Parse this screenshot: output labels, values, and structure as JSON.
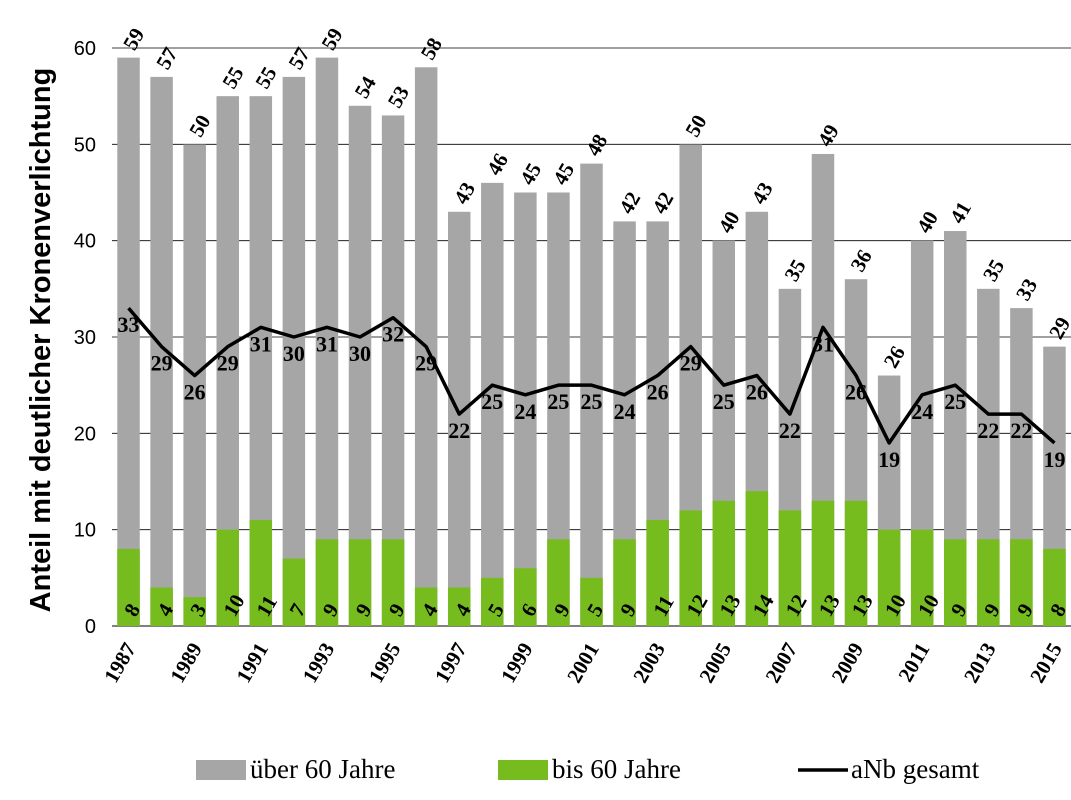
{
  "chart_data": {
    "type": "bar",
    "subtype": "grouped-overlap-bar-with-line",
    "title": "",
    "xlabel": "",
    "ylabel": "Anteil mit deutlicher Kronenverlichtung",
    "ylim": [
      0,
      60
    ],
    "yticks": [
      0,
      10,
      20,
      30,
      40,
      50,
      60
    ],
    "grid": true,
    "legend_position": "bottom",
    "categories": [
      "1987",
      "1988",
      "1989",
      "1990",
      "1991",
      "1992",
      "1993",
      "1994",
      "1995",
      "1996",
      "1997",
      "1998",
      "1999",
      "2000",
      "2001",
      "2002",
      "2003",
      "2004",
      "2005",
      "2006",
      "2007",
      "2008",
      "2009",
      "2010",
      "2011",
      "2012",
      "2013",
      "2014",
      "2015"
    ],
    "tick_labels": [
      "1987",
      "",
      "1989",
      "",
      "1991",
      "",
      "1993",
      "",
      "1995",
      "",
      "1997",
      "",
      "1999",
      "",
      "2001",
      "",
      "2003",
      "",
      "2005",
      "",
      "2007",
      "",
      "2009",
      "",
      "2011",
      "",
      "2013",
      "",
      "2015"
    ],
    "series": [
      {
        "name": "über 60 Jahre",
        "kind": "bar",
        "color": "#a6a6a6",
        "values": [
          59,
          57,
          50,
          55,
          55,
          57,
          59,
          54,
          53,
          58,
          43,
          46,
          45,
          45,
          48,
          42,
          42,
          50,
          40,
          43,
          35,
          49,
          36,
          26,
          40,
          41,
          35,
          33,
          29
        ]
      },
      {
        "name": "bis 60 Jahre",
        "kind": "bar",
        "color": "#77bc1f",
        "values": [
          8,
          4,
          3,
          10,
          11,
          7,
          9,
          9,
          9,
          4,
          4,
          5,
          6,
          9,
          5,
          9,
          11,
          12,
          13,
          14,
          12,
          13,
          13,
          10,
          10,
          9,
          9,
          9,
          8
        ]
      },
      {
        "name": "aNb gesamt",
        "kind": "line",
        "color": "#000000",
        "values": [
          33,
          29,
          26,
          29,
          31,
          30,
          31,
          30,
          32,
          29,
          22,
          25,
          24,
          25,
          25,
          24,
          26,
          29,
          25,
          26,
          22,
          31,
          26,
          19,
          24,
          25,
          22,
          22,
          19
        ]
      }
    ]
  }
}
